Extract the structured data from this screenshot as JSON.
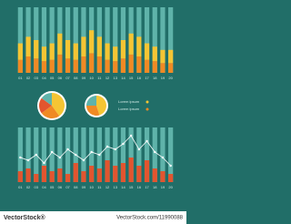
{
  "chart_data": [
    {
      "type": "stacked-bar",
      "categories": [
        "01",
        "02",
        "03",
        "04",
        "05",
        "06",
        "07",
        "08",
        "09",
        "10",
        "11",
        "12",
        "13",
        "14",
        "15",
        "16",
        "17",
        "18",
        "19",
        "20"
      ],
      "series": [
        {
          "color": "#f08a24",
          "values": [
            20,
            25,
            22,
            18,
            20,
            28,
            22,
            20,
            25,
            30,
            25,
            20,
            18,
            22,
            28,
            25,
            20,
            18,
            15,
            15
          ]
        },
        {
          "color": "#f5c534",
          "values": [
            25,
            30,
            28,
            22,
            25,
            32,
            28,
            25,
            30,
            35,
            30,
            25,
            22,
            28,
            32,
            30,
            25,
            22,
            20,
            20
          ]
        }
      ],
      "track_color": "#5fb3aa",
      "ylim": [
        0,
        100
      ]
    },
    {
      "type": "pie",
      "values": [
        40,
        25,
        20,
        15
      ],
      "colors": [
        "#f5c534",
        "#f08a24",
        "#e2552f",
        "#5fb3aa"
      ]
    },
    {
      "type": "pie",
      "values": [
        45,
        30,
        25
      ],
      "colors": [
        "#f5c534",
        "#f08a24",
        "#5fb3aa"
      ]
    },
    {
      "type": "bar-line",
      "categories": [
        "01",
        "02",
        "03",
        "04",
        "05",
        "06",
        "07",
        "08",
        "09",
        "10",
        "11",
        "12",
        "13",
        "14",
        "15",
        "16",
        "17",
        "18",
        "19",
        "20"
      ],
      "values": [
        20,
        25,
        15,
        30,
        20,
        25,
        15,
        35,
        20,
        30,
        25,
        40,
        30,
        35,
        45,
        30,
        40,
        25,
        20,
        15
      ],
      "color": "#e2552f",
      "line": {
        "color": "#ffffff",
        "values": [
          45,
          40,
          50,
          35,
          55,
          45,
          60,
          50,
          40,
          55,
          50,
          65,
          60,
          70,
          85,
          60,
          75,
          55,
          45,
          30
        ]
      },
      "track_color": "#5fb3aa",
      "ylim": [
        0,
        100
      ]
    }
  ],
  "legend": [
    {
      "label": "Lorem ipsum",
      "color": "#f5c534"
    },
    {
      "label": "Lorem ipsum",
      "color": "#f08a24"
    }
  ],
  "watermark": {
    "brand": "VectorStock®",
    "url": "VectorStock.com/11990088"
  }
}
